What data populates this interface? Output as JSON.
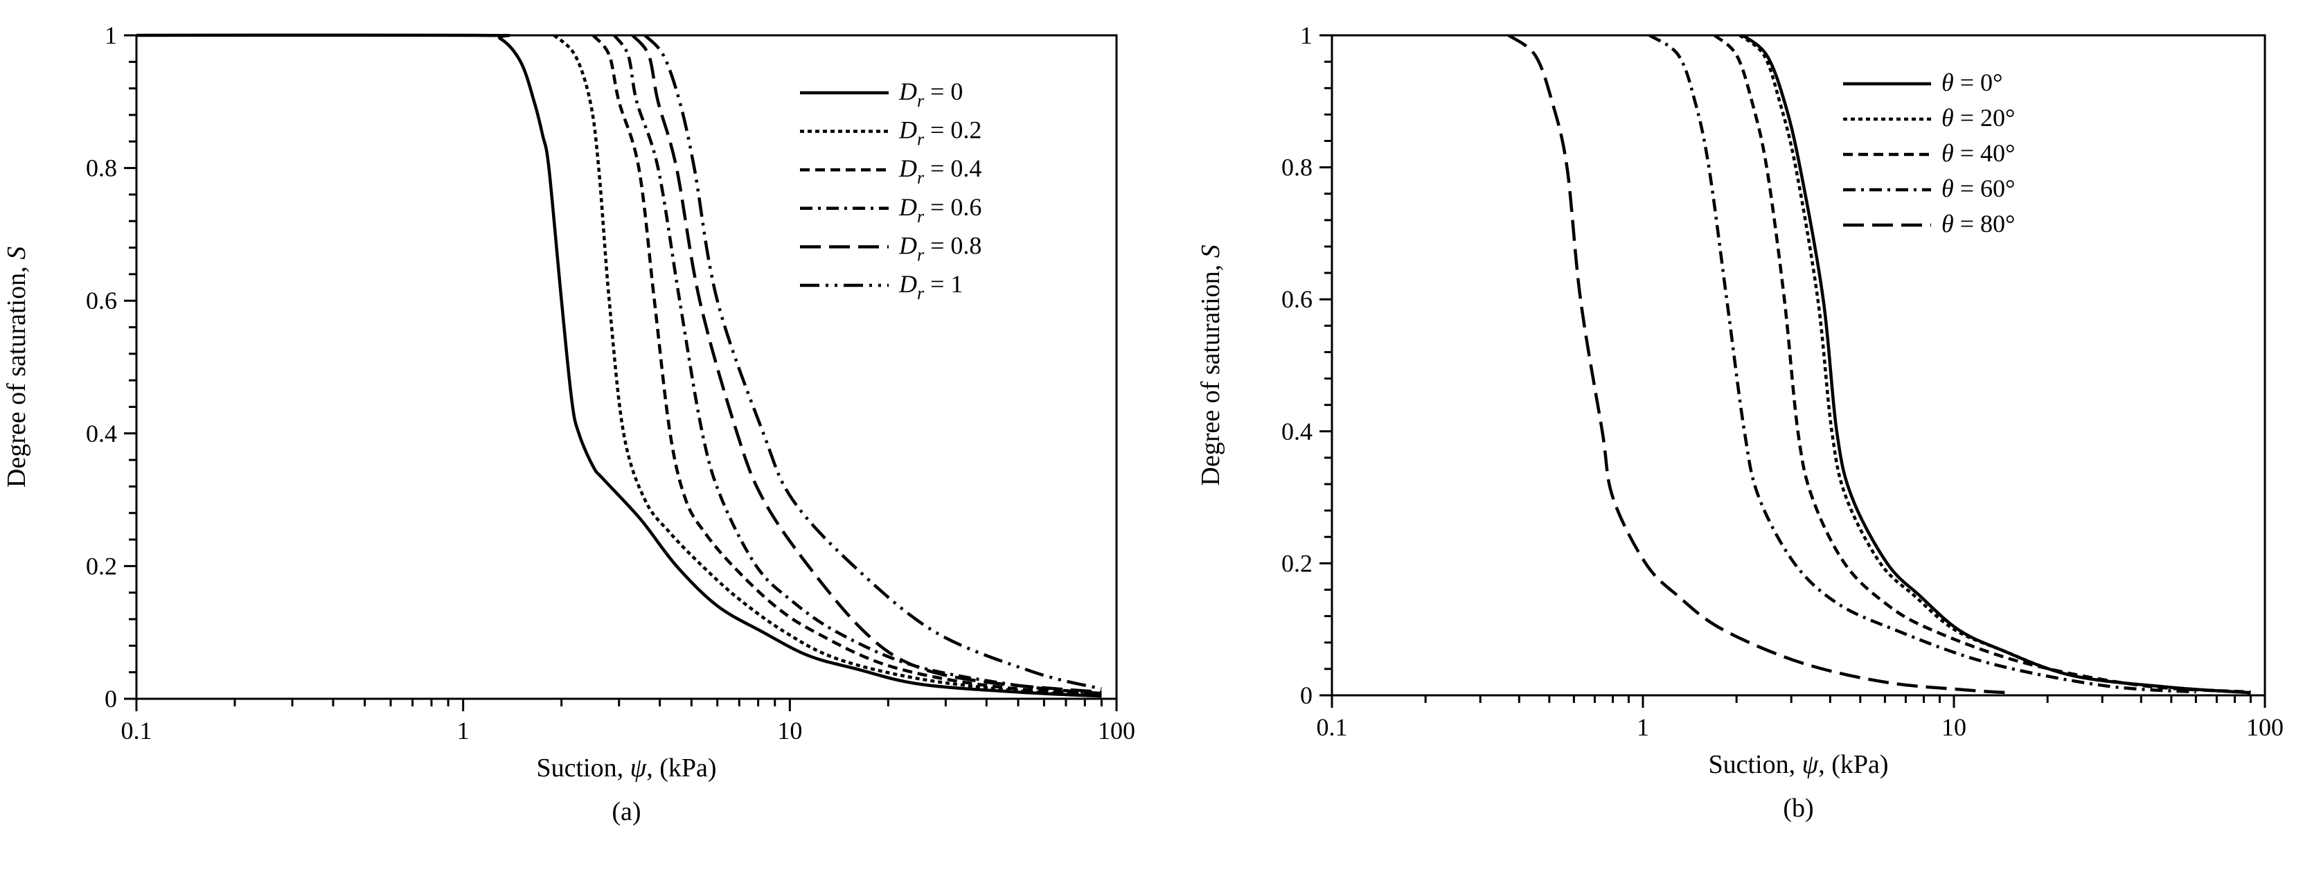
{
  "chart_data": [
    {
      "type": "line",
      "panel_label": "(a)",
      "xscale": "log",
      "xlim": [
        0.1,
        100
      ],
      "ylim": [
        0,
        1
      ],
      "xticks": [
        "0.1",
        "1",
        "10",
        "100"
      ],
      "yticks": [
        "0",
        "0.2",
        "0.4",
        "0.6",
        "0.8",
        "1"
      ],
      "xlabel": {
        "pre": "Suction, ",
        "sym": "ψ",
        "post": ", (kPa)"
      },
      "ylabel": {
        "pre": "Degree of saturation, ",
        "sym": "S"
      },
      "legend_position": "top-right",
      "series": [
        {
          "label": {
            "sym": "D",
            "sub": "r",
            "rest": " = 0"
          },
          "dash": "solid",
          "points": [
            [
              0.1,
              1
            ],
            [
              1.1,
              1
            ],
            [
              1.3,
              0.995
            ],
            [
              1.5,
              0.96
            ],
            [
              1.65,
              0.9
            ],
            [
              1.75,
              0.85
            ],
            [
              1.83,
              0.8
            ],
            [
              2.0,
              0.6
            ],
            [
              2.15,
              0.45
            ],
            [
              2.26,
              0.4
            ],
            [
              2.5,
              0.35
            ],
            [
              2.7,
              0.33
            ],
            [
              3.5,
              0.27
            ],
            [
              4.5,
              0.2
            ],
            [
              6,
              0.14
            ],
            [
              8.3,
              0.1
            ],
            [
              11.4,
              0.065
            ],
            [
              16,
              0.045
            ],
            [
              25,
              0.022
            ],
            [
              50,
              0.01
            ],
            [
              90,
              0.004
            ]
          ]
        },
        {
          "label": {
            "sym": "D",
            "sub": "r",
            "rest": " = 0.2"
          },
          "dash": "dotted",
          "points": [
            [
              1.9,
              1
            ],
            [
              2.2,
              0.97
            ],
            [
              2.45,
              0.9
            ],
            [
              2.6,
              0.8
            ],
            [
              2.8,
              0.6
            ],
            [
              3.1,
              0.4
            ],
            [
              3.6,
              0.3
            ],
            [
              4.3,
              0.25
            ],
            [
              5.4,
              0.2
            ],
            [
              7,
              0.15
            ],
            [
              9.7,
              0.1
            ],
            [
              14,
              0.06
            ],
            [
              25,
              0.03
            ],
            [
              50,
              0.012
            ],
            [
              90,
              0.005
            ]
          ]
        },
        {
          "label": {
            "sym": "D",
            "sub": "r",
            "rest": " = 0.4"
          },
          "dash": "dashed",
          "points": [
            [
              2.5,
              1
            ],
            [
              2.8,
              0.97
            ],
            [
              3.0,
              0.9
            ],
            [
              3.45,
              0.8
            ],
            [
              3.85,
              0.6
            ],
            [
              4.3,
              0.4
            ],
            [
              4.8,
              0.3
            ],
            [
              5.5,
              0.25
            ],
            [
              6.7,
              0.2
            ],
            [
              9,
              0.14
            ],
            [
              12,
              0.1
            ],
            [
              20,
              0.05
            ],
            [
              40,
              0.02
            ],
            [
              90,
              0.006
            ]
          ]
        },
        {
          "label": {
            "sym": "D",
            "sub": "r",
            "rest": " = 0.6"
          },
          "dash": "dash-dot",
          "points": [
            [
              2.9,
              1
            ],
            [
              3.2,
              0.97
            ],
            [
              3.4,
              0.9
            ],
            [
              3.95,
              0.8
            ],
            [
              4.6,
              0.6
            ],
            [
              5.4,
              0.4
            ],
            [
              6.2,
              0.3
            ],
            [
              7.9,
              0.2
            ],
            [
              10,
              0.15
            ],
            [
              14,
              0.1
            ],
            [
              24,
              0.05
            ],
            [
              50,
              0.02
            ],
            [
              90,
              0.008
            ]
          ]
        },
        {
          "label": {
            "sym": "D",
            "sub": "r",
            "rest": " = 0.8"
          },
          "dash": "long-dash",
          "points": [
            [
              3.3,
              1
            ],
            [
              3.7,
              0.97
            ],
            [
              3.95,
              0.9
            ],
            [
              4.5,
              0.8
            ],
            [
              5.3,
              0.6
            ],
            [
              6.9,
              0.4
            ],
            [
              8.3,
              0.3
            ],
            [
              11.4,
              0.2
            ],
            [
              17,
              0.1
            ],
            [
              24,
              0.05
            ],
            [
              40,
              0.025
            ],
            [
              90,
              0.01
            ]
          ]
        },
        {
          "label": {
            "sym": "D",
            "sub": "r",
            "rest": " = 1"
          },
          "dash": "dash-dot-dot",
          "points": [
            [
              3.6,
              1
            ],
            [
              4.1,
              0.97
            ],
            [
              4.6,
              0.9
            ],
            [
              5.1,
              0.8
            ],
            [
              6,
              0.6
            ],
            [
              8.3,
              0.4
            ],
            [
              10.2,
              0.3
            ],
            [
              15.7,
              0.2
            ],
            [
              28,
              0.1
            ],
            [
              56,
              0.04
            ],
            [
              90,
              0.015
            ]
          ]
        }
      ]
    },
    {
      "type": "line",
      "panel_label": "(b)",
      "xscale": "log",
      "xlim": [
        0.1,
        100
      ],
      "ylim": [
        0,
        1
      ],
      "xticks": [
        "0.1",
        "1",
        "10",
        "100"
      ],
      "yticks": [
        "0",
        "0.2",
        "0.4",
        "0.6",
        "0.8",
        "1"
      ],
      "xlabel": {
        "pre": "Suction, ",
        "sym": "ψ",
        "post": ", (kPa)"
      },
      "ylabel": {
        "pre": "Degree of saturation, ",
        "sym": "S"
      },
      "legend_position": "top-right",
      "series": [
        {
          "label": {
            "sym": "θ",
            "sub": "",
            "rest": " = 0°"
          },
          "dash": "solid",
          "points": [
            [
              2.1,
              1
            ],
            [
              2.5,
              0.97
            ],
            [
              2.85,
              0.9
            ],
            [
              3.2,
              0.8
            ],
            [
              3.8,
              0.6
            ],
            [
              4.2,
              0.4
            ],
            [
              4.7,
              0.3
            ],
            [
              6.1,
              0.2
            ],
            [
              7.8,
              0.15
            ],
            [
              10.3,
              0.1
            ],
            [
              14,
              0.07
            ],
            [
              24,
              0.03
            ],
            [
              50,
              0.012
            ],
            [
              90,
              0.004
            ]
          ]
        },
        {
          "label": {
            "sym": "θ",
            "sub": "",
            "rest": " = 20°"
          },
          "dash": "dotted",
          "points": [
            [
              2.05,
              1
            ],
            [
              2.45,
              0.97
            ],
            [
              2.75,
              0.9
            ],
            [
              3.1,
              0.8
            ],
            [
              3.65,
              0.6
            ],
            [
              4.05,
              0.4
            ],
            [
              4.5,
              0.3
            ],
            [
              5.8,
              0.2
            ],
            [
              7.5,
              0.15
            ],
            [
              10,
              0.1
            ],
            [
              14,
              0.07
            ],
            [
              24,
              0.03
            ],
            [
              50,
              0.012
            ],
            [
              90,
              0.004
            ]
          ]
        },
        {
          "label": {
            "sym": "θ",
            "sub": "",
            "rest": " = 40°"
          },
          "dash": "dashed",
          "points": [
            [
              1.7,
              1
            ],
            [
              2.0,
              0.97
            ],
            [
              2.24,
              0.9
            ],
            [
              2.5,
              0.8
            ],
            [
              2.85,
              0.6
            ],
            [
              3.15,
              0.4
            ],
            [
              3.5,
              0.3
            ],
            [
              4.45,
              0.2
            ],
            [
              6,
              0.14
            ],
            [
              8.4,
              0.1
            ],
            [
              16.6,
              0.05
            ],
            [
              40,
              0.015
            ],
            [
              90,
              0.005
            ]
          ]
        },
        {
          "label": {
            "sym": "θ",
            "sub": "",
            "rest": " = 60°"
          },
          "dash": "dash-dot",
          "points": [
            [
              1.05,
              1
            ],
            [
              1.3,
              0.97
            ],
            [
              1.47,
              0.9
            ],
            [
              1.63,
              0.8
            ],
            [
              1.86,
              0.6
            ],
            [
              2.12,
              0.4
            ],
            [
              2.36,
              0.3
            ],
            [
              3.07,
              0.2
            ],
            [
              4.2,
              0.14
            ],
            [
              6.4,
              0.1
            ],
            [
              12.7,
              0.05
            ],
            [
              30,
              0.015
            ],
            [
              60,
              0.005
            ]
          ]
        },
        {
          "label": {
            "sym": "θ",
            "sub": "",
            "rest": " = 80°"
          },
          "dash": "long-dash",
          "points": [
            [
              0.37,
              1
            ],
            [
              0.45,
              0.97
            ],
            [
              0.51,
              0.9
            ],
            [
              0.57,
              0.8
            ],
            [
              0.63,
              0.6
            ],
            [
              0.74,
              0.4
            ],
            [
              0.8,
              0.3
            ],
            [
              1.02,
              0.2
            ],
            [
              1.3,
              0.15
            ],
            [
              1.8,
              0.1
            ],
            [
              3.2,
              0.05
            ],
            [
              6,
              0.02
            ],
            [
              11,
              0.008
            ],
            [
              15,
              0.004
            ]
          ]
        }
      ]
    }
  ]
}
